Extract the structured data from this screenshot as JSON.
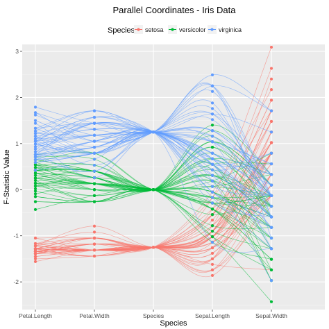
{
  "chart_data": {
    "type": "line",
    "title": "Parallel Coordinates - Iris Data",
    "xlabel": "Species",
    "ylabel": "F-Statistic Value",
    "ylim": [
      -2.6,
      3.15
    ],
    "yticks": [
      -2,
      -1,
      0,
      1,
      2,
      3
    ],
    "categories": [
      "Petal.Length",
      "Petal.Width",
      "Species",
      "Sepal.Length",
      "Sepal.Width"
    ],
    "grid": true,
    "legend": {
      "title": "Species",
      "placement": "top",
      "entries": [
        "setosa",
        "versicolor",
        "virginica"
      ]
    },
    "series": [
      {
        "name": "setosa",
        "color": "#F8766D",
        "axis_values": [
          [
            -1.34,
            -1.31,
            -1.25,
            -0.9,
            1.02
          ],
          [
            -1.3,
            -1.31,
            -1.25,
            -1.14,
            -0.13
          ],
          [
            -1.39,
            -1.31,
            -1.25,
            -1.38,
            0.33
          ],
          [
            -1.28,
            -1.31,
            -1.25,
            -1.5,
            0.1
          ],
          [
            -1.34,
            -1.31,
            -1.25,
            -1.02,
            1.25
          ],
          [
            -1.17,
            -1.05,
            -1.25,
            -0.54,
            1.94
          ],
          [
            -1.34,
            -1.18,
            -1.25,
            -1.5,
            0.79
          ],
          [
            -1.28,
            -1.31,
            -1.25,
            -1.02,
            0.79
          ],
          [
            -1.34,
            -1.31,
            -1.25,
            -1.74,
            -0.36
          ],
          [
            -1.28,
            -1.44,
            -1.25,
            -1.14,
            0.1
          ],
          [
            -1.28,
            -1.31,
            -1.25,
            -0.54,
            1.48
          ],
          [
            -1.22,
            -1.31,
            -1.25,
            -1.26,
            0.79
          ],
          [
            -1.34,
            -1.44,
            -1.25,
            -1.26,
            -0.13
          ],
          [
            -1.5,
            -1.44,
            -1.25,
            -1.86,
            -0.13
          ],
          [
            -1.45,
            -1.31,
            -1.25,
            -0.05,
            2.17
          ],
          [
            -1.28,
            -1.05,
            -1.25,
            -0.17,
            3.09
          ],
          [
            -1.39,
            -1.05,
            -1.25,
            -0.54,
            1.94
          ],
          [
            -1.34,
            -1.18,
            -1.25,
            -0.9,
            1.02
          ],
          [
            -1.17,
            -1.18,
            -1.25,
            -0.17,
            1.71
          ],
          [
            -1.28,
            -1.18,
            -1.25,
            -0.9,
            1.71
          ],
          [
            -1.17,
            -1.31,
            -1.25,
            -0.54,
            0.79
          ],
          [
            -1.28,
            -1.05,
            -1.25,
            -0.9,
            1.48
          ],
          [
            -1.56,
            -1.31,
            -1.25,
            -1.5,
            1.25
          ],
          [
            -1.17,
            -0.92,
            -1.25,
            -0.9,
            0.56
          ],
          [
            -1.05,
            -1.31,
            -1.25,
            -1.26,
            0.79
          ],
          [
            -1.22,
            -1.31,
            -1.25,
            -1.02,
            -0.13
          ],
          [
            -1.22,
            -1.05,
            -1.25,
            -1.02,
            0.79
          ],
          [
            -1.28,
            -1.31,
            -1.25,
            -0.78,
            1.02
          ],
          [
            -1.34,
            -1.31,
            -1.25,
            -0.78,
            0.79
          ],
          [
            -1.22,
            -1.31,
            -1.25,
            -1.38,
            0.33
          ],
          [
            -1.22,
            -1.31,
            -1.25,
            -1.26,
            0.1
          ],
          [
            -1.28,
            -1.05,
            -1.25,
            -0.54,
            0.79
          ],
          [
            -1.28,
            -1.44,
            -1.25,
            -0.78,
            2.4
          ],
          [
            -1.34,
            -1.31,
            -1.25,
            -0.42,
            2.63
          ],
          [
            -1.28,
            -1.31,
            -1.25,
            -1.14,
            0.1
          ],
          [
            -1.45,
            -1.31,
            -1.25,
            -1.02,
            0.33
          ],
          [
            -1.39,
            -1.31,
            -1.25,
            -0.42,
            1.02
          ],
          [
            -1.34,
            -1.44,
            -1.25,
            -1.14,
            1.25
          ],
          [
            -1.39,
            -1.31,
            -1.25,
            -1.74,
            -0.13
          ],
          [
            -1.28,
            -1.31,
            -1.25,
            -0.9,
            0.79
          ],
          [
            -1.39,
            -1.18,
            -1.25,
            -1.02,
            1.02
          ],
          [
            -1.39,
            -1.18,
            -1.25,
            -1.62,
            -1.74
          ],
          [
            -1.39,
            -1.31,
            -1.25,
            -1.74,
            0.33
          ],
          [
            -1.22,
            -0.79,
            -1.25,
            -1.02,
            1.02
          ],
          [
            -1.05,
            -1.05,
            -1.25,
            -0.9,
            1.71
          ],
          [
            -1.34,
            -1.18,
            -1.25,
            -1.26,
            -0.13
          ],
          [
            -1.22,
            -1.31,
            -1.25,
            -0.9,
            1.71
          ],
          [
            -1.34,
            -1.31,
            -1.25,
            -1.5,
            0.33
          ],
          [
            -1.28,
            -1.31,
            -1.25,
            -0.66,
            1.48
          ],
          [
            -1.34,
            -1.31,
            -1.25,
            -1.02,
            0.56
          ]
        ]
      },
      {
        "name": "versicolor",
        "color": "#00BA38",
        "axis_values": [
          [
            0.54,
            0.26,
            0.0,
            1.4,
            0.33
          ],
          [
            0.42,
            0.4,
            0.0,
            0.67,
            0.33
          ],
          [
            0.65,
            0.4,
            0.0,
            1.28,
            0.1
          ],
          [
            0.14,
            0.13,
            0.0,
            -0.42,
            -1.74
          ],
          [
            0.48,
            0.4,
            0.0,
            0.79,
            -0.59
          ],
          [
            0.42,
            0.13,
            0.0,
            -0.17,
            -0.59
          ],
          [
            0.54,
            0.53,
            0.0,
            0.55,
            0.56
          ],
          [
            -0.26,
            -0.26,
            0.0,
            -1.14,
            -1.51
          ],
          [
            0.48,
            0.13,
            0.0,
            0.92,
            -0.36
          ],
          [
            0.08,
            0.26,
            0.0,
            -0.78,
            -0.82
          ],
          [
            -0.15,
            -0.26,
            0.0,
            -1.02,
            -2.43
          ],
          [
            0.25,
            0.4,
            0.0,
            0.07,
            -0.13
          ],
          [
            0.14,
            -0.26,
            0.0,
            0.19,
            -1.97
          ],
          [
            0.54,
            0.26,
            0.0,
            0.31,
            -0.36
          ],
          [
            -0.09,
            0.13,
            0.0,
            -0.29,
            -0.36
          ],
          [
            0.36,
            0.26,
            0.0,
            1.04,
            0.1
          ],
          [
            0.42,
            0.4,
            0.0,
            -0.29,
            -0.13
          ],
          [
            0.2,
            -0.26,
            0.0,
            -0.05,
            -0.82
          ],
          [
            0.42,
            0.4,
            0.0,
            0.43,
            -1.97
          ],
          [
            0.08,
            -0.13,
            0.0,
            -0.29,
            -1.28
          ],
          [
            0.59,
            0.79,
            0.0,
            0.07,
            0.33
          ],
          [
            0.14,
            0.13,
            0.0,
            0.31,
            -0.59
          ],
          [
            0.65,
            0.4,
            0.0,
            0.55,
            -1.28
          ],
          [
            0.54,
            0.0,
            0.0,
            0.31,
            -0.59
          ],
          [
            0.31,
            0.13,
            0.0,
            0.67,
            -0.36
          ],
          [
            0.36,
            0.26,
            0.0,
            0.92,
            -0.13
          ],
          [
            0.59,
            0.26,
            0.0,
            1.16,
            -0.59
          ],
          [
            0.71,
            0.66,
            0.0,
            1.04,
            -0.13
          ],
          [
            0.42,
            0.4,
            0.0,
            0.19,
            -0.36
          ],
          [
            -0.15,
            -0.26,
            0.0,
            -0.17,
            -1.05
          ],
          [
            0.02,
            -0.13,
            0.0,
            -0.42,
            -1.51
          ],
          [
            -0.03,
            -0.26,
            0.0,
            -0.42,
            -1.51
          ],
          [
            0.08,
            0.0,
            0.0,
            -0.05,
            -0.82
          ],
          [
            0.76,
            0.79,
            0.0,
            0.19,
            -0.82
          ],
          [
            0.42,
            0.4,
            0.0,
            -0.54,
            -0.13
          ],
          [
            0.42,
            0.53,
            0.0,
            0.19,
            0.79
          ],
          [
            0.54,
            0.4,
            0.0,
            1.04,
            0.1
          ],
          [
            0.36,
            0.13,
            0.0,
            0.55,
            -1.74
          ],
          [
            0.14,
            0.13,
            0.0,
            -0.29,
            -0.13
          ],
          [
            0.08,
            0.13,
            0.0,
            -0.42,
            -1.28
          ],
          [
            0.36,
            0.0,
            0.0,
            -0.42,
            -1.05
          ],
          [
            0.48,
            0.26,
            0.0,
            0.31,
            -0.13
          ],
          [
            0.14,
            0.0,
            0.0,
            -0.05,
            -1.05
          ],
          [
            -0.26,
            -0.26,
            0.0,
            -1.02,
            -1.74
          ],
          [
            0.25,
            0.13,
            0.0,
            -0.29,
            -0.82
          ],
          [
            0.25,
            0.0,
            0.0,
            -0.17,
            -0.13
          ],
          [
            0.25,
            0.13,
            0.0,
            -0.17,
            -0.36
          ],
          [
            0.31,
            0.13,
            0.0,
            0.43,
            -0.36
          ],
          [
            -0.43,
            -0.13,
            0.0,
            -0.9,
            -1.28
          ],
          [
            0.2,
            0.13,
            0.0,
            -0.17,
            -0.59
          ]
        ]
      },
      {
        "name": "virginica",
        "color": "#619CFF",
        "axis_values": [
          [
            1.27,
            1.71,
            1.25,
            0.55,
            0.56
          ],
          [
            0.76,
            0.92,
            1.25,
            -0.05,
            -0.82
          ],
          [
            1.22,
            1.18,
            1.25,
            1.52,
            -0.13
          ],
          [
            1.05,
            0.79,
            1.25,
            0.55,
            -0.36
          ],
          [
            1.16,
            1.31,
            1.25,
            0.79,
            -0.13
          ],
          [
            1.62,
            1.18,
            1.25,
            2.13,
            -0.13
          ],
          [
            0.42,
            0.66,
            1.25,
            -1.14,
            -1.28
          ],
          [
            1.44,
            0.79,
            1.25,
            1.76,
            -0.36
          ],
          [
            1.16,
            0.79,
            1.25,
            1.04,
            -1.28
          ],
          [
            1.33,
            1.71,
            1.25,
            1.64,
            1.25
          ],
          [
            0.76,
            1.05,
            1.25,
            0.79,
            0.33
          ],
          [
            0.88,
            0.92,
            1.25,
            0.67,
            -0.82
          ],
          [
            0.99,
            1.18,
            1.25,
            1.16,
            -0.13
          ],
          [
            0.71,
            1.05,
            1.25,
            -0.17,
            -1.28
          ],
          [
            0.76,
            1.57,
            1.25,
            -0.05,
            -0.59
          ],
          [
            0.88,
            1.44,
            1.25,
            0.67,
            0.33
          ],
          [
            0.99,
            0.79,
            1.25,
            0.79,
            -0.13
          ],
          [
            1.67,
            1.31,
            1.25,
            2.25,
            1.71
          ],
          [
            1.79,
            1.44,
            1.25,
            2.25,
            -1.05
          ],
          [
            0.71,
            0.4,
            1.25,
            0.19,
            -1.97
          ],
          [
            1.1,
            1.44,
            1.25,
            1.28,
            0.33
          ],
          [
            0.65,
            1.05,
            1.25,
            -0.29,
            -0.59
          ],
          [
            1.67,
            1.05,
            1.25,
            2.25,
            -0.59
          ],
          [
            0.65,
            0.79,
            1.25,
            0.55,
            -0.82
          ],
          [
            1.1,
            1.18,
            1.25,
            1.04,
            0.56
          ],
          [
            1.27,
            0.79,
            1.25,
            1.64,
            0.33
          ],
          [
            0.59,
            0.79,
            1.25,
            0.43,
            -0.59
          ],
          [
            0.65,
            0.79,
            1.25,
            0.31,
            -0.13
          ],
          [
            1.05,
            1.18,
            1.25,
            0.67,
            -0.59
          ],
          [
            1.16,
            0.53,
            1.25,
            1.64,
            -0.13
          ],
          [
            1.33,
            0.92,
            1.25,
            1.88,
            -0.59
          ],
          [
            1.5,
            1.05,
            1.25,
            2.49,
            1.71
          ],
          [
            1.05,
            1.31,
            1.25,
            0.67,
            -0.59
          ],
          [
            0.76,
            0.4,
            1.25,
            0.55,
            -0.59
          ],
          [
            1.05,
            0.26,
            1.25,
            0.31,
            -1.05
          ],
          [
            1.33,
            1.44,
            1.25,
            2.25,
            -0.13
          ],
          [
            1.05,
            1.57,
            1.25,
            0.55,
            0.79
          ],
          [
            0.99,
            0.79,
            1.25,
            0.67,
            0.1
          ],
          [
            0.59,
            0.79,
            1.25,
            0.19,
            -0.13
          ],
          [
            0.93,
            1.18,
            1.25,
            1.28,
            0.1
          ],
          [
            1.05,
            1.57,
            1.25,
            1.04,
            0.1
          ],
          [
            0.76,
            1.44,
            1.25,
            1.28,
            0.1
          ],
          [
            0.76,
            0.92,
            1.25,
            -0.05,
            -0.82
          ],
          [
            1.22,
            1.44,
            1.25,
            1.16,
            0.33
          ],
          [
            1.1,
            1.71,
            1.25,
            1.04,
            0.56
          ],
          [
            0.82,
            1.44,
            1.25,
            1.04,
            -0.13
          ],
          [
            0.71,
            0.92,
            1.25,
            0.55,
            -1.28
          ],
          [
            0.82,
            1.05,
            1.25,
            0.79,
            -0.13
          ],
          [
            0.93,
            1.44,
            1.25,
            0.43,
            0.79
          ],
          [
            0.76,
            0.79,
            1.25,
            0.07,
            -0.13
          ]
        ]
      }
    ]
  }
}
